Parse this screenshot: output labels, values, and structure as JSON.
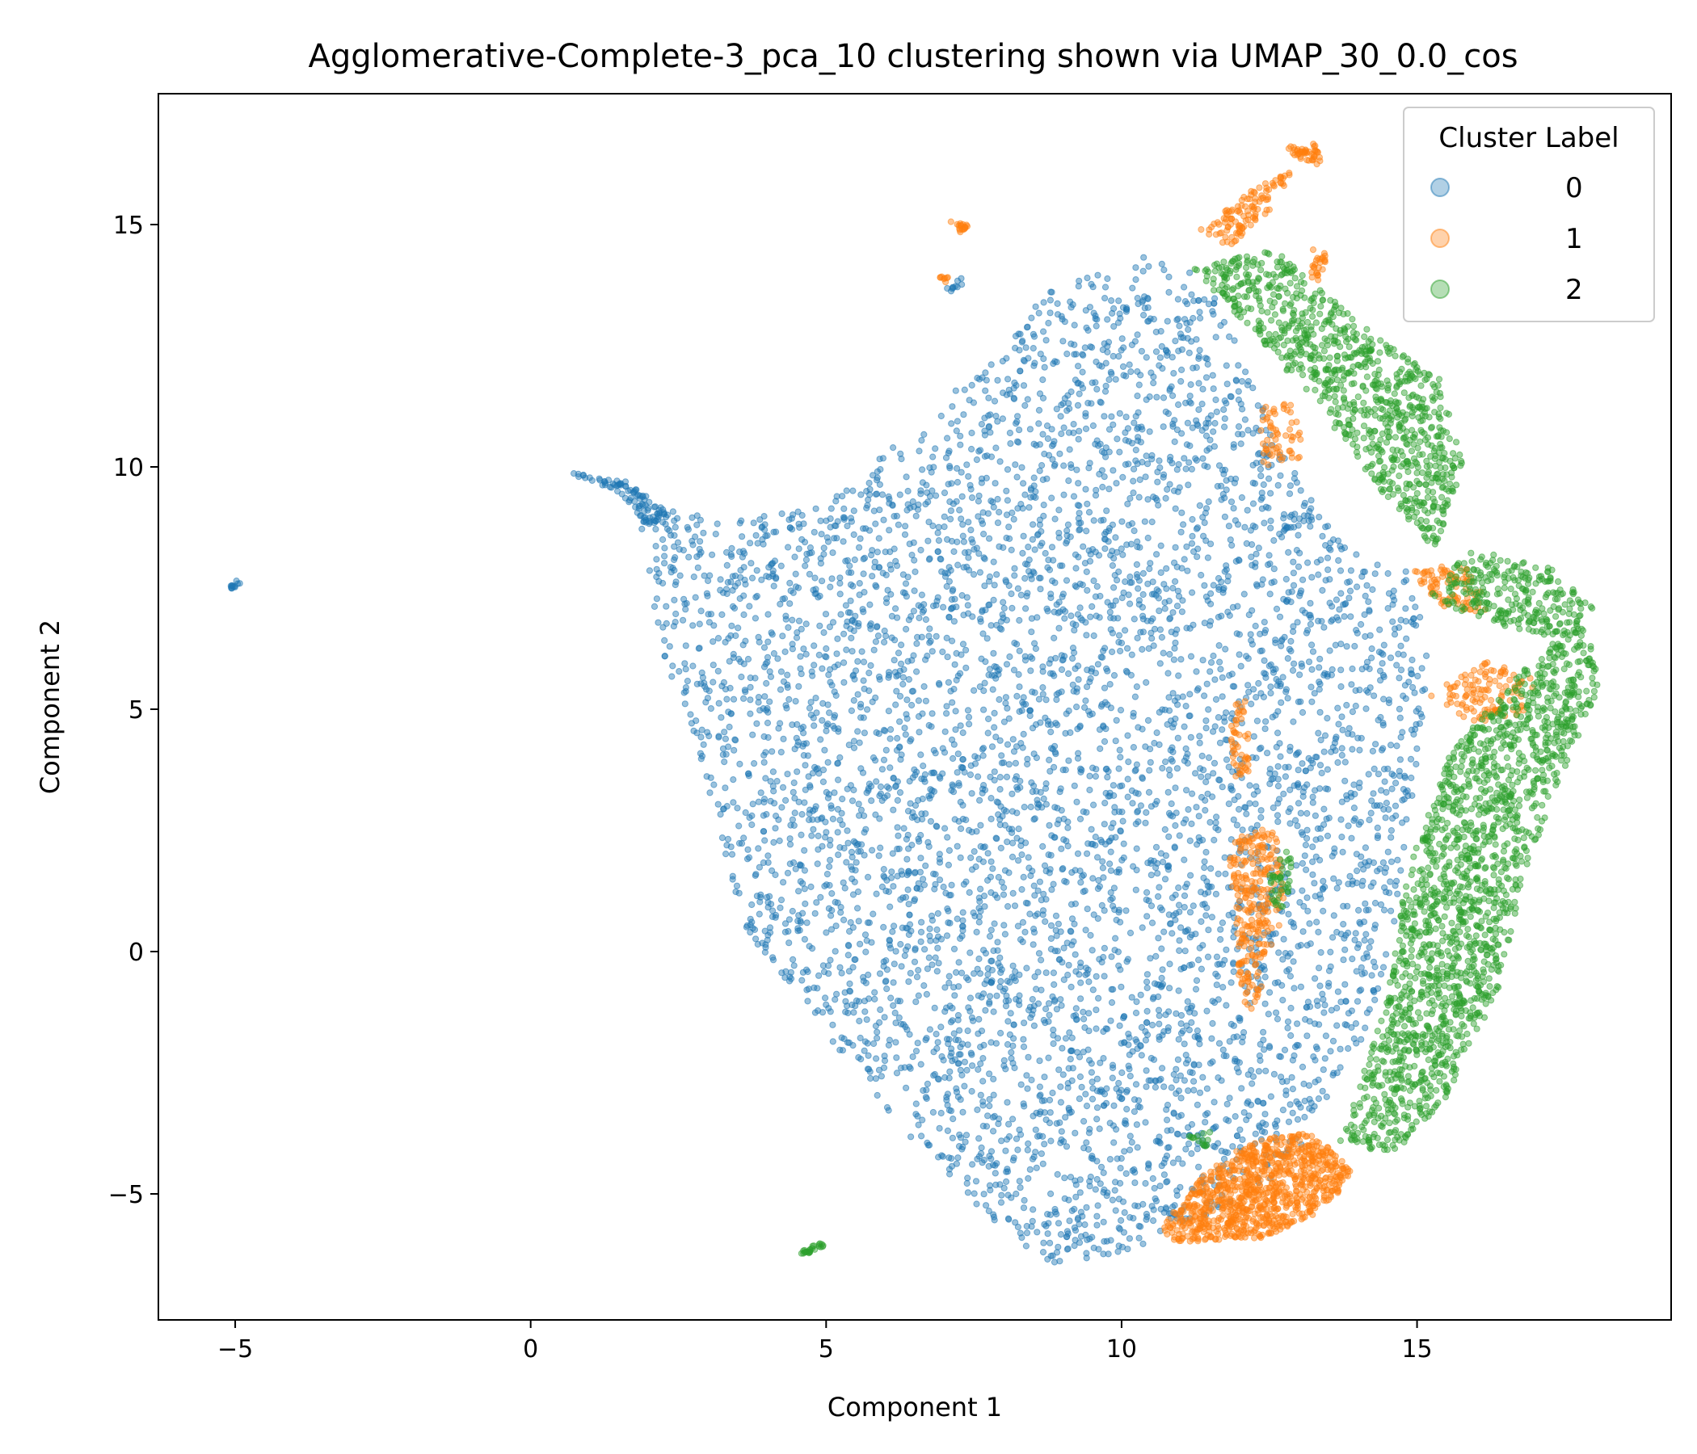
{
  "chart_data": {
    "type": "scatter",
    "title": "Agglomerative-Complete-3_pca_10 clustering shown via UMAP_30_0.0_cos",
    "xlabel": "Component 1",
    "ylabel": "Component 2",
    "xlim": [
      -6.3,
      19.3
    ],
    "ylim": [
      -7.6,
      17.7
    ],
    "xticks": [
      -5,
      0,
      5,
      10,
      15
    ],
    "yticks": [
      -5,
      0,
      5,
      10,
      15
    ],
    "xtick_labels": [
      "−5",
      "0",
      "5",
      "10",
      "15"
    ],
    "ytick_labels": [
      "−5",
      "0",
      "5",
      "10",
      "15"
    ],
    "grid": false,
    "legend": {
      "title": "Cluster Label",
      "placement": "top-right",
      "entries": [
        {
          "label": "0",
          "color": "#1f77b4"
        },
        {
          "label": "1",
          "color": "#ff7f0e"
        },
        {
          "label": "2",
          "color": "#2ca02c"
        }
      ]
    },
    "series": [
      {
        "name": "0",
        "color": "#1f77b4",
        "regions": [
          {
            "polygon": [
              [
                1.8,
                9.3
              ],
              [
                3.2,
                8.9
              ],
              [
                5,
                9.2
              ],
              [
                6.5,
                10.8
              ],
              [
                7.8,
                12.3
              ],
              [
                8.8,
                13.7
              ],
              [
                10.8,
                14.5
              ],
              [
                11.6,
                13.5
              ],
              [
                12.2,
                11.8
              ],
              [
                12.8,
                10.2
              ],
              [
                13.8,
                8.3
              ],
              [
                14.9,
                7.9
              ],
              [
                15.2,
                6.0
              ],
              [
                14.9,
                3.0
              ],
              [
                14.6,
                0.5
              ],
              [
                14.2,
                -1.5
              ],
              [
                13.6,
                -2.8
              ],
              [
                12.8,
                -4.5
              ],
              [
                11.5,
                -5.4
              ],
              [
                10.3,
                -6.1
              ],
              [
                8.9,
                -6.5
              ],
              [
                7.8,
                -5.6
              ],
              [
                6.6,
                -4.1
              ],
              [
                5.2,
                -2.0
              ],
              [
                3.6,
                0.5
              ],
              [
                2.9,
                3.8
              ],
              [
                2.2,
                6.3
              ]
            ],
            "count": 5200
          },
          {
            "polygon": [
              [
                0.6,
                9.9
              ],
              [
                1.6,
                9.7
              ],
              [
                2.4,
                9.0
              ],
              [
                2.0,
                8.8
              ],
              [
                1.4,
                9.5
              ]
            ],
            "count": 90
          },
          {
            "polygon": [
              [
                -5.1,
                7.55
              ],
              [
                -4.9,
                7.75
              ],
              [
                -4.85,
                7.6
              ],
              [
                -5.05,
                7.45
              ]
            ],
            "count": 12
          },
          {
            "polygon": [
              [
                7.0,
                13.7
              ],
              [
                7.3,
                13.9
              ],
              [
                7.35,
                13.75
              ],
              [
                7.1,
                13.6
              ]
            ],
            "count": 10
          },
          {
            "polygon": [
              [
                12.6,
                8.7
              ],
              [
                13.2,
                9.1
              ],
              [
                13.3,
                8.9
              ],
              [
                12.7,
                8.6
              ]
            ],
            "count": 14
          }
        ]
      },
      {
        "name": "1",
        "color": "#ff7f0e",
        "regions": [
          {
            "polygon": [
              [
                10.6,
                -5.8
              ],
              [
                11.4,
                -4.6
              ],
              [
                12.2,
                -3.9
              ],
              [
                13.2,
                -3.7
              ],
              [
                13.9,
                -4.5
              ],
              [
                13.5,
                -5.3
              ],
              [
                12.4,
                -5.9
              ],
              [
                11.0,
                -6.0
              ]
            ],
            "count": 900
          },
          {
            "polygon": [
              [
                11.8,
                2.3
              ],
              [
                12.6,
                2.6
              ],
              [
                12.8,
                1.0
              ],
              [
                12.4,
                -0.4
              ],
              [
                12.3,
                -1.4
              ],
              [
                12.0,
                -0.9
              ],
              [
                11.9,
                1.0
              ]
            ],
            "count": 260
          },
          {
            "polygon": [
              [
                11.8,
                5.1
              ],
              [
                12.1,
                5.2
              ],
              [
                12.2,
                3.7
              ],
              [
                11.9,
                3.6
              ]
            ],
            "count": 50
          },
          {
            "polygon": [
              [
                15.2,
                5.3
              ],
              [
                16.2,
                6.0
              ],
              [
                17.0,
                5.6
              ],
              [
                16.8,
                4.9
              ],
              [
                15.9,
                4.7
              ]
            ],
            "count": 120
          },
          {
            "polygon": [
              [
                14.9,
                7.9
              ],
              [
                15.9,
                8.0
              ],
              [
                16.2,
                7.0
              ],
              [
                15.3,
                7.1
              ]
            ],
            "count": 90
          },
          {
            "polygon": [
              [
                11.3,
                14.9
              ],
              [
                12.3,
                15.8
              ],
              [
                12.9,
                16.1
              ],
              [
                12.5,
                15.3
              ],
              [
                11.8,
                14.5
              ]
            ],
            "count": 110
          },
          {
            "polygon": [
              [
                12.8,
                16.6
              ],
              [
                13.3,
                16.7
              ],
              [
                13.4,
                16.2
              ],
              [
                13.0,
                16.3
              ]
            ],
            "count": 45
          },
          {
            "polygon": [
              [
                13.2,
                14.5
              ],
              [
                13.5,
                14.4
              ],
              [
                13.4,
                13.8
              ],
              [
                13.2,
                13.9
              ]
            ],
            "count": 25
          },
          {
            "polygon": [
              [
                12.3,
                11.2
              ],
              [
                12.9,
                11.4
              ],
              [
                13.1,
                10.2
              ],
              [
                12.4,
                10.0
              ]
            ],
            "count": 60
          },
          {
            "polygon": [
              [
                7.1,
                15.1
              ],
              [
                7.4,
                15.0
              ],
              [
                7.35,
                14.8
              ],
              [
                7.15,
                14.9
              ]
            ],
            "count": 18
          },
          {
            "polygon": [
              [
                6.9,
                13.95
              ],
              [
                7.1,
                13.9
              ],
              [
                7.05,
                13.75
              ]
            ],
            "count": 8
          }
        ]
      },
      {
        "name": "2",
        "color": "#2ca02c",
        "regions": [
          {
            "polygon": [
              [
                13.7,
                -3.9
              ],
              [
                14.5,
                -1.0
              ],
              [
                14.8,
                1.5
              ],
              [
                15.6,
                4.2
              ],
              [
                16.8,
                5.8
              ],
              [
                17.8,
                7.0
              ],
              [
                18.1,
                5.5
              ],
              [
                17.5,
                3.8
              ],
              [
                16.8,
                1.6
              ],
              [
                16.4,
                -0.7
              ],
              [
                15.5,
                -3.0
              ],
              [
                14.6,
                -4.2
              ]
            ],
            "count": 1700
          },
          {
            "polygon": [
              [
                15.2,
                7.3
              ],
              [
                15.9,
                8.3
              ],
              [
                17.3,
                7.9
              ],
              [
                18.0,
                7.1
              ],
              [
                17.3,
                6.5
              ],
              [
                15.8,
                6.9
              ]
            ],
            "count": 260
          },
          {
            "polygon": [
              [
                11.2,
                14.1
              ],
              [
                12.6,
                14.5
              ],
              [
                13.8,
                13.2
              ],
              [
                15.4,
                11.8
              ],
              [
                15.8,
                9.9
              ],
              [
                15.3,
                8.3
              ],
              [
                14.4,
                9.5
              ],
              [
                13.3,
                11.3
              ],
              [
                12.2,
                12.8
              ]
            ],
            "count": 900
          },
          {
            "polygon": [
              [
                4.5,
                -6.2
              ],
              [
                5.0,
                -5.95
              ],
              [
                4.95,
                -6.1
              ],
              [
                4.55,
                -6.3
              ]
            ],
            "count": 25
          },
          {
            "polygon": [
              [
                12.5,
                2.0
              ],
              [
                12.9,
                2.1
              ],
              [
                12.8,
                0.9
              ],
              [
                12.5,
                1.0
              ]
            ],
            "count": 40
          },
          {
            "polygon": [
              [
                11.1,
                -3.8
              ],
              [
                11.6,
                -3.5
              ],
              [
                11.5,
                -4.1
              ]
            ],
            "count": 15
          }
        ]
      }
    ]
  }
}
